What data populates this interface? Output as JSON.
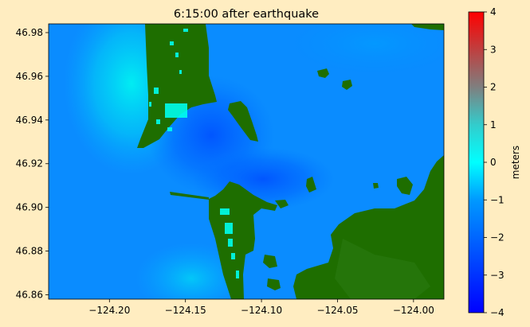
{
  "figure": {
    "background": "#ffedc1",
    "land_color": "#1e6e00",
    "dry_land_bright": "#00ffee"
  },
  "chart_data": {
    "type": "heatmap",
    "title": "6:15:00 after earthquake",
    "xlabel": "",
    "ylabel": "",
    "xlim": [
      -124.24,
      -123.98
    ],
    "ylim": [
      46.858,
      46.984
    ],
    "xticks": [
      -124.2,
      -124.15,
      -124.1,
      -124.05,
      -124.0
    ],
    "xtick_labels": [
      "−124.20",
      "−124.15",
      "−124.10",
      "−124.05",
      "−124.00"
    ],
    "yticks": [
      46.86,
      46.88,
      46.9,
      46.92,
      46.94,
      46.96,
      46.98
    ],
    "ytick_labels": [
      "46.86",
      "46.88",
      "46.90",
      "46.92",
      "46.94",
      "46.96",
      "46.98"
    ],
    "colorbar": {
      "label": "meters",
      "vmin": -4,
      "vmax": 4,
      "ticks": [
        4,
        3,
        2,
        1,
        0,
        -1,
        -2,
        -3,
        -4
      ],
      "tick_labels": [
        "4",
        "3",
        "2",
        "1",
        "0",
        "−1",
        "−2",
        "−3",
        "−4"
      ],
      "colors": [
        {
          "value": -4,
          "color": "#0000ff"
        },
        {
          "value": -2,
          "color": "#0066ff"
        },
        {
          "value": -1,
          "color": "#0099ff"
        },
        {
          "value": 0,
          "color": "#00ffff"
        },
        {
          "value": 1,
          "color": "#33cccc"
        },
        {
          "value": 2,
          "color": "#7f7f7f"
        },
        {
          "value": 4,
          "color": "#ff0000"
        }
      ]
    },
    "water_surface_range_m": [
      -2.5,
      -0.2
    ],
    "land_masked": true
  }
}
